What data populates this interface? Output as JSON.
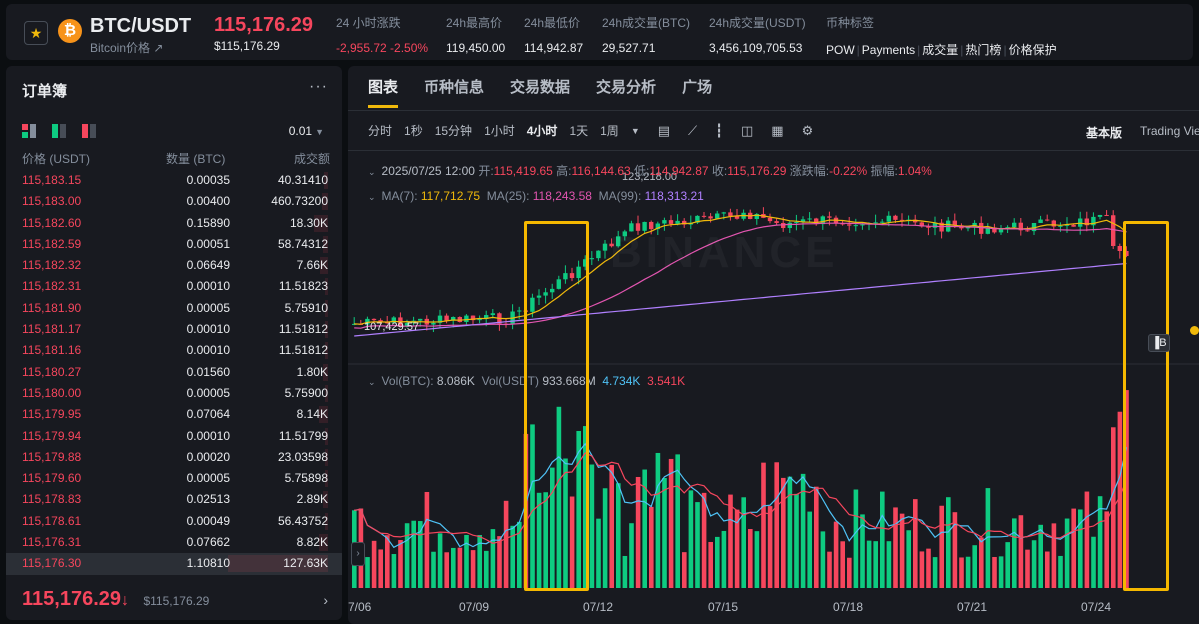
{
  "ticker": {
    "pair": "BTC/USDT",
    "subtitle": "Bitcoin价格 ↗",
    "last_price": "115,176.29",
    "last_price_usd": "$115,176.29",
    "stats": [
      {
        "label": "24 小时涨跌",
        "value": "-2,955.72 -2.50%",
        "negative": true
      },
      {
        "label": "24h最高价",
        "value": "119,450.00"
      },
      {
        "label": "24h最低价",
        "value": "114,942.87"
      },
      {
        "label": "24h成交量(BTC)",
        "value": "29,527.71"
      },
      {
        "label": "24h成交量(USDT)",
        "value": "3,456,109,705.53"
      }
    ],
    "tags_label": "币种标签",
    "tags": [
      "POW",
      "Payments",
      "成交量",
      "热门榜",
      "价格保护"
    ]
  },
  "orderbook": {
    "title": "订单簿",
    "more": "···",
    "precision": "0.01",
    "headers": {
      "price": "价格 (USDT)",
      "qty": "数量 (BTC)",
      "total": "成交额"
    },
    "rows": [
      {
        "price": "115,183.15",
        "qty": "0.00035",
        "total": "40.31410",
        "depth": 0.04
      },
      {
        "price": "115,183.00",
        "qty": "0.00400",
        "total": "460.73200",
        "depth": 0.06
      },
      {
        "price": "115,182.60",
        "qty": "0.15890",
        "total": "18.30K",
        "depth": 0.14
      },
      {
        "price": "115,182.59",
        "qty": "0.00051",
        "total": "58.74312",
        "depth": 0.05
      },
      {
        "price": "115,182.32",
        "qty": "0.06649",
        "total": "7.66K",
        "depth": 0.08
      },
      {
        "price": "115,182.31",
        "qty": "0.00010",
        "total": "11.51823",
        "depth": 0.03
      },
      {
        "price": "115,181.90",
        "qty": "0.00005",
        "total": "5.75910",
        "depth": 0.03
      },
      {
        "price": "115,181.17",
        "qty": "0.00010",
        "total": "11.51812",
        "depth": 0.03
      },
      {
        "price": "115,181.16",
        "qty": "0.00010",
        "total": "11.51812",
        "depth": 0.03
      },
      {
        "price": "115,180.27",
        "qty": "0.01560",
        "total": "1.80K",
        "depth": 0.05
      },
      {
        "price": "115,180.00",
        "qty": "0.00005",
        "total": "5.75900",
        "depth": 0.03
      },
      {
        "price": "115,179.95",
        "qty": "0.07064",
        "total": "8.14K",
        "depth": 0.09
      },
      {
        "price": "115,179.94",
        "qty": "0.00010",
        "total": "11.51799",
        "depth": 0.03
      },
      {
        "price": "115,179.88",
        "qty": "0.00020",
        "total": "23.03598",
        "depth": 0.03
      },
      {
        "price": "115,179.60",
        "qty": "0.00005",
        "total": "5.75898",
        "depth": 0.03
      },
      {
        "price": "115,178.83",
        "qty": "0.02513",
        "total": "2.89K",
        "depth": 0.05
      },
      {
        "price": "115,178.61",
        "qty": "0.00049",
        "total": "56.43752",
        "depth": 0.03
      },
      {
        "price": "115,176.31",
        "qty": "0.07662",
        "total": "8.82K",
        "depth": 0.09
      },
      {
        "price": "115,176.30",
        "qty": "1.10810",
        "total": "127.63K",
        "depth": 1.0
      }
    ],
    "footer_price": "115,176.29",
    "footer_arrow": "↓",
    "footer_usd": "$115,176.29",
    "footer_chevron": "›"
  },
  "chart": {
    "tabs": [
      "图表",
      "币种信息",
      "交易数据",
      "交易分析",
      "广场"
    ],
    "timeframes": [
      "分时",
      "1秒",
      "15分钟",
      "1小时",
      "4小时",
      "1天",
      "1周"
    ],
    "active_timeframe": "4小时",
    "view_basic": "基本版",
    "view_tv": "Trading View",
    "ohlc": {
      "date": "2025/07/25 12:00",
      "open_label": "开:",
      "open": "115,419.65",
      "high_label": "高:",
      "high": "116,144.63",
      "low_label": "低:",
      "low": "114,942.87",
      "close_label": "收:",
      "close": "115,176.29",
      "change_label": "涨跌幅:",
      "change": "-0.22%",
      "amp_label": "振幅:",
      "amp": "1.04%"
    },
    "ma": {
      "ma7_label": "MA(7):",
      "ma7": "117,712.75",
      "ma25_label": "MA(25):",
      "ma25": "118,243.58",
      "ma99_label": "MA(99):",
      "ma99": "118,313.21"
    },
    "vol": {
      "btc_label": "Vol(BTC):",
      "btc": "8.086K",
      "usdt_label": "Vol(USDT)",
      "usdt": "933.668M",
      "ma1": "4.734K",
      "ma2": "3.541K"
    },
    "high_marker": "123,218.00",
    "low_marker": "107,429.57",
    "watermark": "BINANCE",
    "x_labels": [
      "7/06",
      "07/09",
      "07/12",
      "07/15",
      "07/18",
      "07/21",
      "07/24"
    ],
    "colors": {
      "up": "#0ecb81",
      "down": "#f6465d",
      "ma7": "#f0b90b",
      "ma25": "#e255b0",
      "ma99": "#b080ff",
      "vol_ma1": "#4fc3f7",
      "vol_ma2": "#f6465d",
      "annotation": "#f5b800"
    }
  }
}
